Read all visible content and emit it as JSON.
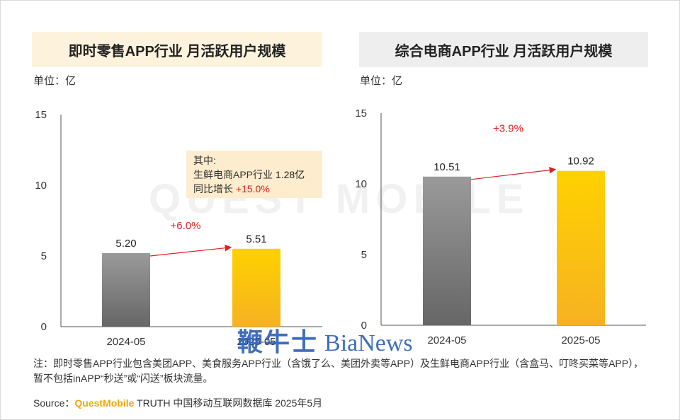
{
  "left_panel": {
    "title": "即时零售APP行业 月活跃用户规模",
    "unit": "单位：亿",
    "infobox": {
      "line1": "其中:",
      "line2_label": "生鲜电商APP行业 ",
      "line2_value": "1.28亿",
      "line3_label": "同比增长 ",
      "line3_value": "+15.0%"
    }
  },
  "right_panel": {
    "title": "综合电商APP行业 月活跃用户规模",
    "unit": "单位：亿"
  },
  "colors": {
    "bar_2024": "#7f7f7f",
    "bar_2025": "#fbbf00",
    "growth_red": "#e02020",
    "left_title_bg": "#fdf3dd",
    "right_title_bg": "#eeeeee",
    "source_brand": "#f2a800",
    "watermark": "#2b5fb4"
  },
  "chart_data": [
    {
      "type": "bar",
      "categories": [
        "2024-05",
        "2025-05"
      ],
      "values": [
        5.2,
        5.51
      ],
      "value_labels": [
        "5.20",
        "5.51"
      ],
      "growth_label": "+6.0%",
      "ylim": [
        0,
        15
      ],
      "yticks": [
        0,
        5,
        10,
        15
      ],
      "grid": false
    },
    {
      "type": "bar",
      "categories": [
        "2024-05",
        "2025-05"
      ],
      "values": [
        10.51,
        10.92
      ],
      "value_labels": [
        "10.51",
        "10.92"
      ],
      "growth_label": "+3.9%",
      "ylim": [
        0,
        15
      ],
      "yticks": [
        0,
        5,
        10,
        15
      ],
      "grid": false
    }
  ],
  "note": "注：即时零售APP行业包含美团APP、美食服务APP行业（含饿了么、美团外卖等APP）及生鲜电商APP行业（含盒马、叮咚买菜等APP），暂不包括inAPP“秒送”或“闪送”板块流量。",
  "source": {
    "prefix": "Source：",
    "brand": "QuestMobile",
    "suffix": " TRUTH 中国移动互联网数据库 2025年5月"
  },
  "watermarks": {
    "background_logo": "QUEST MOBILE",
    "bianews_cn": "鞭牛士",
    "bianews_en": "BiaNews"
  }
}
